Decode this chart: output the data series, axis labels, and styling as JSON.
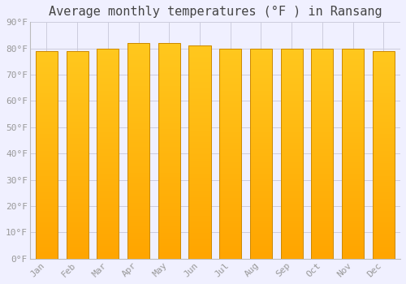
{
  "title": "Average monthly temperatures (°F ) in Ransang",
  "months": [
    "Jan",
    "Feb",
    "Mar",
    "Apr",
    "May",
    "Jun",
    "Jul",
    "Aug",
    "Sep",
    "Oct",
    "Nov",
    "Dec"
  ],
  "values": [
    79,
    79,
    80,
    82,
    82,
    81,
    80,
    80,
    80,
    80,
    80,
    79
  ],
  "ylim": [
    0,
    90
  ],
  "yticks": [
    0,
    10,
    20,
    30,
    40,
    50,
    60,
    70,
    80,
    90
  ],
  "ytick_labels": [
    "0°F",
    "10°F",
    "20°F",
    "30°F",
    "40°F",
    "50°F",
    "60°F",
    "70°F",
    "80°F",
    "90°F"
  ],
  "bar_color_main": "#FFA500",
  "bar_color_highlight": "#FFD700",
  "bar_edge_color": "#CC8800",
  "background_color": "#F0F0FF",
  "grid_color": "#CCCCDD",
  "title_fontsize": 11,
  "tick_fontsize": 8,
  "font_color": "#999999",
  "title_color": "#444444"
}
